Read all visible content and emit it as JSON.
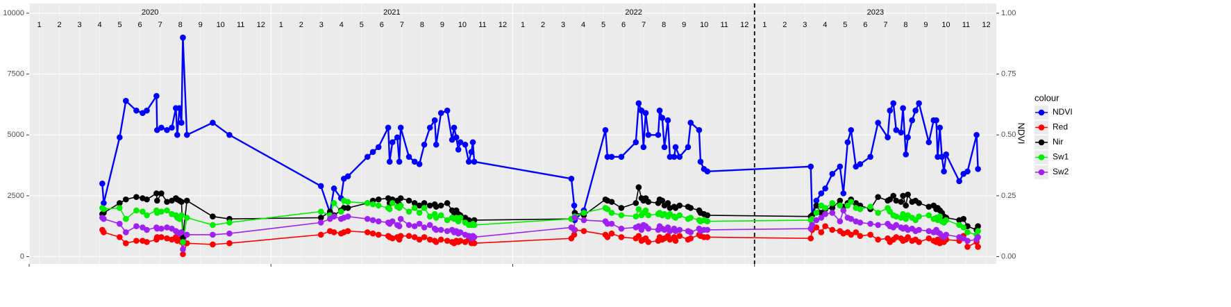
{
  "chart_data": {
    "type": "line",
    "y2_label": "NDVI",
    "legend_title": "colour",
    "legend_position": "right",
    "grid": true,
    "x": [
      4.13,
      4.2,
      4.99,
      5.3,
      5.82,
      6.13,
      6.34,
      6.82,
      6.85,
      7.06,
      7.34,
      7.58,
      7.78,
      7.85,
      7.96,
      8.06,
      8.13,
      8.33,
      9.61,
      10.44,
      14.98,
      15.43,
      15.63,
      15.98,
      16.12,
      16.32,
      17.29,
      17.56,
      17.84,
      18.32,
      18.39,
      18.53,
      18.77,
      18.87,
      18.94,
      19.35,
      19.63,
      19.87,
      20.11,
      20.39,
      20.63,
      20.7,
      20.94,
      21.25,
      21.49,
      21.59,
      21.7,
      21.8,
      21.9,
      22.14,
      22.32,
      22.45,
      22.52,
      22.59,
      27.41,
      27.55,
      27.58,
      28.03,
      29.1,
      29.2,
      29.41,
      29.89,
      30.61,
      30.75,
      30.89,
      30.99,
      31.1,
      31.23,
      31.72,
      31.79,
      31.92,
      32.03,
      32.2,
      32.3,
      32.51,
      32.58,
      32.78,
      33.2,
      33.33,
      33.75,
      33.82,
      33.99,
      34.16,
      39.29,
      39.36,
      39.57,
      39.81,
      40.01,
      40.36,
      40.74,
      40.91,
      41.12,
      41.29,
      41.53,
      41.74,
      42.25,
      42.63,
      43.11,
      43.22,
      43.39,
      43.53,
      43.77,
      43.87,
      44.01,
      44.11,
      44.32,
      44.49,
      44.66,
      45.15,
      45.39,
      45.52,
      45.59,
      45.7,
      45.8,
      45.9,
      46.01,
      46.66,
      46.87,
      47.07,
      47.52,
      47.59
    ],
    "series": [
      {
        "name": "NDVI",
        "color": "#0000ff",
        "axis": "y2",
        "values": [
          0.3,
          0.22,
          0.49,
          0.64,
          0.6,
          0.59,
          0.6,
          0.66,
          0.52,
          0.53,
          0.52,
          0.53,
          0.61,
          0.5,
          0.61,
          0.55,
          0.9,
          0.5,
          0.55,
          0.5,
          0.29,
          0.18,
          0.28,
          0.24,
          0.32,
          0.33,
          0.41,
          0.43,
          0.45,
          0.53,
          0.39,
          0.47,
          0.49,
          0.39,
          0.53,
          0.41,
          0.39,
          0.38,
          0.46,
          0.53,
          0.56,
          0.46,
          0.59,
          0.6,
          0.48,
          0.53,
          0.49,
          0.44,
          0.47,
          0.46,
          0.39,
          0.43,
          0.47,
          0.39,
          0.32,
          0.21,
          0.15,
          0.19,
          0.52,
          0.41,
          0.41,
          0.41,
          0.47,
          0.63,
          0.6,
          0.45,
          0.59,
          0.5,
          0.5,
          0.6,
          0.57,
          0.45,
          0.56,
          0.41,
          0.41,
          0.45,
          0.41,
          0.45,
          0.55,
          0.52,
          0.39,
          0.36,
          0.35,
          0.37,
          0.17,
          0.23,
          0.26,
          0.28,
          0.34,
          0.37,
          0.26,
          0.47,
          0.52,
          0.37,
          0.38,
          0.41,
          0.55,
          0.49,
          0.6,
          0.63,
          0.52,
          0.51,
          0.61,
          0.42,
          0.49,
          0.56,
          0.6,
          0.63,
          0.47,
          0.56,
          0.56,
          0.41,
          0.53,
          0.41,
          0.35,
          0.42,
          0.31,
          0.34,
          0.35,
          0.5,
          0.36
        ]
      },
      {
        "name": "Red",
        "color": "#ff0000",
        "values": [
          1100,
          1000,
          800,
          550,
          650,
          650,
          600,
          700,
          800,
          800,
          750,
          700,
          800,
          650,
          700,
          600,
          100,
          550,
          500,
          550,
          900,
          1050,
          1000,
          950,
          1000,
          1050,
          1000,
          950,
          900,
          850,
          800,
          750,
          800,
          700,
          850,
          850,
          800,
          700,
          800,
          700,
          650,
          600,
          700,
          650,
          600,
          550,
          650,
          600,
          650,
          600,
          700,
          550,
          600,
          550,
          750,
          900,
          1100,
          1050,
          900,
          800,
          950,
          800,
          750,
          850,
          650,
          700,
          750,
          600,
          650,
          800,
          700,
          750,
          850,
          700,
          800,
          650,
          850,
          700,
          750,
          900,
          850,
          800,
          800,
          750,
          1100,
          1200,
          1000,
          1250,
          1100,
          1050,
          950,
          1000,
          900,
          1000,
          850,
          900,
          700,
          750,
          600,
          700,
          800,
          750,
          650,
          700,
          800,
          650,
          700,
          600,
          750,
          650,
          600,
          700,
          550,
          650,
          600,
          700,
          650,
          850,
          400,
          600,
          400
        ]
      },
      {
        "name": "Nir",
        "color": "#000000",
        "values": [
          1750,
          1800,
          2200,
          2350,
          2450,
          2400,
          2350,
          2600,
          2300,
          2600,
          2250,
          2300,
          2400,
          2350,
          2300,
          2250,
          800,
          2300,
          1650,
          1550,
          1600,
          1850,
          1700,
          1900,
          2000,
          2000,
          2200,
          2300,
          2350,
          2400,
          2200,
          2350,
          2300,
          2150,
          2400,
          2300,
          2200,
          2100,
          2200,
          2100,
          2150,
          2050,
          2100,
          2200,
          1900,
          1800,
          1900,
          1750,
          1700,
          1600,
          1500,
          1400,
          1450,
          1500,
          1550,
          1600,
          1800,
          1700,
          2350,
          2300,
          2250,
          2000,
          2200,
          2850,
          2400,
          2300,
          2400,
          2250,
          2200,
          2350,
          2300,
          2100,
          2200,
          2000,
          2050,
          2000,
          2100,
          2050,
          2000,
          1900,
          1800,
          1750,
          1700,
          1650,
          1700,
          2100,
          1800,
          1950,
          2000,
          2300,
          2050,
          2200,
          2350,
          2200,
          2100,
          1950,
          2450,
          2300,
          2350,
          2500,
          2300,
          2250,
          2500,
          2100,
          2550,
          2250,
          2300,
          2200,
          2050,
          2100,
          1950,
          2000,
          1900,
          1800,
          1650,
          1600,
          1500,
          1550,
          1250,
          1100,
          1250
        ]
      },
      {
        "name": "Sw1",
        "color": "#00ee00",
        "values": [
          2000,
          1950,
          2000,
          1550,
          1900,
          1850,
          1700,
          1900,
          1800,
          1850,
          1900,
          1750,
          1700,
          1600,
          1550,
          1700,
          600,
          1600,
          1300,
          1400,
          1850,
          1700,
          2200,
          1850,
          2300,
          2250,
          2200,
          2150,
          2100,
          2000,
          1950,
          2200,
          2050,
          2000,
          2100,
          1850,
          2000,
          1800,
          2000,
          1650,
          1750,
          1600,
          1700,
          1500,
          1600,
          1550,
          1600,
          1450,
          1600,
          1400,
          1300,
          1300,
          1350,
          1300,
          1550,
          1600,
          1650,
          1800,
          2000,
          1950,
          1800,
          1700,
          1650,
          1950,
          1700,
          1800,
          1900,
          1700,
          1750,
          1800,
          1700,
          1750,
          1650,
          1750,
          1650,
          1600,
          1700,
          1550,
          1600,
          1500,
          1450,
          1500,
          1450,
          1500,
          1550,
          1800,
          2100,
          2000,
          2200,
          2100,
          1900,
          2100,
          2250,
          2000,
          1950,
          2050,
          1800,
          2000,
          1850,
          1700,
          1650,
          1600,
          1750,
          1550,
          1700,
          1600,
          1500,
          1650,
          1700,
          1550,
          1600,
          1500,
          1650,
          1450,
          1400,
          1500,
          1300,
          1200,
          1000,
          900,
          1050
        ]
      },
      {
        "name": "Sw2",
        "color": "#a020f0",
        "values": [
          1600,
          1550,
          1350,
          1000,
          1250,
          1200,
          1100,
          1200,
          1150,
          1150,
          1200,
          1150,
          1050,
          1000,
          950,
          1000,
          300,
          900,
          900,
          950,
          1400,
          1550,
          1650,
          1550,
          1600,
          1650,
          1550,
          1500,
          1450,
          1400,
          1350,
          1450,
          1300,
          1250,
          1550,
          1300,
          1250,
          1350,
          1200,
          1300,
          1150,
          1100,
          1100,
          1050,
          1100,
          1000,
          1050,
          950,
          1000,
          900,
          850,
          750,
          850,
          800,
          1200,
          1100,
          1600,
          1500,
          1450,
          1350,
          1350,
          1150,
          1200,
          1250,
          1100,
          1300,
          1250,
          1150,
          1100,
          1250,
          1150,
          1100,
          1200,
          1050,
          1150,
          1050,
          1100,
          1050,
          1000,
          1150,
          1050,
          1100,
          1100,
          1150,
          1300,
          1500,
          1600,
          1750,
          1800,
          1450,
          1900,
          1600,
          1550,
          1450,
          1400,
          1350,
          1300,
          1350,
          1250,
          1200,
          1300,
          1200,
          1150,
          1200,
          1100,
          1150,
          1050,
          1100,
          1050,
          1000,
          1100,
          1000,
          950,
          850,
          800,
          900,
          800,
          750,
          650,
          700,
          800
        ]
      }
    ],
    "xlim": [
      0.5,
      48.5
    ],
    "xticks": [
      {
        "value": 1,
        "label": "1"
      },
      {
        "value": 2,
        "label": "2"
      },
      {
        "value": 3,
        "label": "3"
      },
      {
        "value": 4,
        "label": "4"
      },
      {
        "value": 5,
        "label": "5"
      },
      {
        "value": 6,
        "label": "6"
      },
      {
        "value": 7,
        "label": "7"
      },
      {
        "value": 8,
        "label": "8"
      },
      {
        "value": 9,
        "label": "9"
      },
      {
        "value": 10,
        "label": "10"
      },
      {
        "value": 11,
        "label": "11"
      },
      {
        "value": 12,
        "label": "12"
      },
      {
        "value": 13,
        "label": "1"
      },
      {
        "value": 14,
        "label": "2"
      },
      {
        "value": 15,
        "label": "3"
      },
      {
        "value": 16,
        "label": "4"
      },
      {
        "value": 17,
        "label": "5"
      },
      {
        "value": 18,
        "label": "6"
      },
      {
        "value": 19,
        "label": "7"
      },
      {
        "value": 20,
        "label": "8"
      },
      {
        "value": 21,
        "label": "9"
      },
      {
        "value": 22,
        "label": "10"
      },
      {
        "value": 23,
        "label": "11"
      },
      {
        "value": 24,
        "label": "12"
      },
      {
        "value": 25,
        "label": "1"
      },
      {
        "value": 26,
        "label": "2"
      },
      {
        "value": 27,
        "label": "3"
      },
      {
        "value": 28,
        "label": "4"
      },
      {
        "value": 29,
        "label": "5"
      },
      {
        "value": 30,
        "label": "6"
      },
      {
        "value": 31,
        "label": "7"
      },
      {
        "value": 32,
        "label": "8"
      },
      {
        "value": 33,
        "label": "9"
      },
      {
        "value": 34,
        "label": "10"
      },
      {
        "value": 35,
        "label": "11"
      },
      {
        "value": 36,
        "label": "12"
      },
      {
        "value": 37,
        "label": "1"
      },
      {
        "value": 38,
        "label": "2"
      },
      {
        "value": 39,
        "label": "3"
      },
      {
        "value": 40,
        "label": "4"
      },
      {
        "value": 41,
        "label": "5"
      },
      {
        "value": 42,
        "label": "6"
      },
      {
        "value": 43,
        "label": "7"
      },
      {
        "value": 44,
        "label": "8"
      },
      {
        "value": 45,
        "label": "9"
      },
      {
        "value": 46,
        "label": "10"
      },
      {
        "value": 47,
        "label": "11"
      },
      {
        "value": 48,
        "label": "12"
      }
    ],
    "year_labels": [
      {
        "value": 6.5,
        "label": "2020"
      },
      {
        "value": 18.5,
        "label": "2021"
      },
      {
        "value": 30.5,
        "label": "2022"
      },
      {
        "value": 42.5,
        "label": "2023"
      }
    ],
    "x_major_ticks": [
      0.5,
      12.5,
      24.5,
      36.5
    ],
    "vline": {
      "value": 36.5,
      "style": "dashed"
    },
    "ylim": [
      -300,
      10400
    ],
    "yticks": [
      0,
      2500,
      5000,
      7500,
      10000
    ],
    "y2lim": [
      -0.03,
      1.04
    ],
    "y2ticks": [
      {
        "value": 0,
        "label": "0.00"
      },
      {
        "value": 0.25,
        "label": "0.25"
      },
      {
        "value": 0.5,
        "label": "0.50"
      },
      {
        "value": 0.75,
        "label": "0.75"
      },
      {
        "value": 1,
        "label": "1.00"
      }
    ]
  }
}
